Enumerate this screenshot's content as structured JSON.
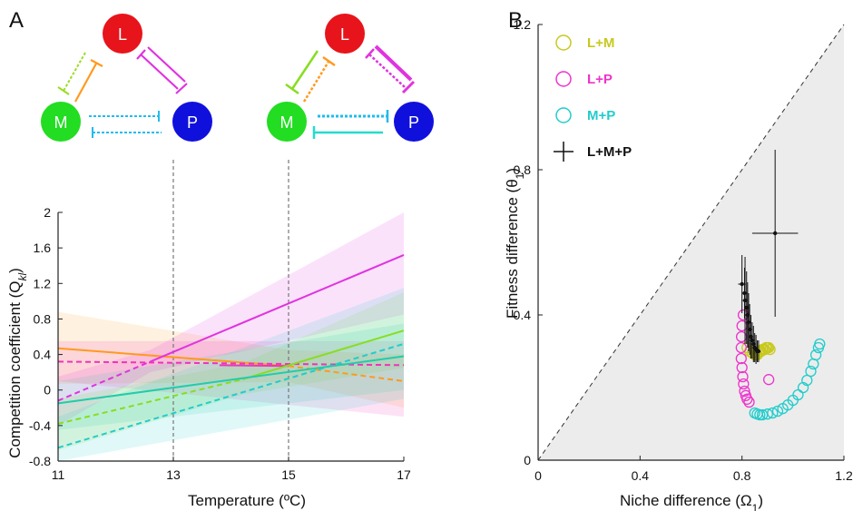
{
  "panels": {
    "a": "A",
    "b": "B"
  },
  "diagram": {
    "nodes": [
      {
        "id": "L",
        "label": "L",
        "color": "#e8141b"
      },
      {
        "id": "M",
        "label": "M",
        "color": "#22dd22"
      },
      {
        "id": "P",
        "label": "P",
        "color": "#1010dd"
      }
    ]
  },
  "chart_data": [
    {
      "type": "line",
      "xlabel": "Temperature (ºC)",
      "ylabel": "Competition coefficient (Q_kl)",
      "ylabel_main": "Competition coefficient (Q",
      "ylabel_sub": "kl",
      "ylabel_end": ")",
      "xlim": [
        11,
        17
      ],
      "ylim": [
        -0.8,
        2
      ],
      "xticks": [
        "11",
        "13",
        "15",
        "17"
      ],
      "yticks": [
        "-0.8",
        "-0.4",
        "0",
        "0.4",
        "0.8",
        "1.2",
        "1.6",
        "2"
      ],
      "vlines": [
        13,
        15
      ],
      "series": [
        {
          "color": "#ff9a1e",
          "dashed": false,
          "x": [
            11,
            15
          ],
          "y": [
            0.47,
            0.27
          ],
          "band": [
            [
              0.88,
              0.07
            ],
            [
              0.45,
              0.09
            ]
          ]
        },
        {
          "color": "#ff9a1e",
          "dashed": true,
          "x": [
            15,
            17
          ],
          "y": [
            0.27,
            0.1
          ],
          "band": [
            [
              0.45,
              0.09
            ],
            [
              0.4,
              -0.2
            ]
          ]
        },
        {
          "color": "#e033e0",
          "dashed": true,
          "x": [
            11,
            12.6
          ],
          "y": [
            -0.12,
            0.32
          ],
          "band": [
            [
              0.15,
              -0.4
            ],
            [
              0.45,
              0.2
            ]
          ]
        },
        {
          "color": "#e033e0",
          "dashed": false,
          "x": [
            12.6,
            17
          ],
          "y": [
            0.32,
            1.52
          ],
          "band": [
            [
              0.45,
              0.2
            ],
            [
              2.0,
              0.85
            ]
          ]
        },
        {
          "color": "#ee33bb",
          "dashed": true,
          "x": [
            11,
            17
          ],
          "y": [
            0.32,
            0.28
          ],
          "band": [
            [
              0.55,
              0.1
            ],
            [
              0.55,
              -0.3
            ]
          ]
        },
        {
          "color": "#ee33bb",
          "dashed": false,
          "x": [
            13.8,
            15
          ],
          "y": [
            0.28,
            0.27
          ],
          "band": null
        },
        {
          "color": "#88dd22",
          "dashed": true,
          "x": [
            11,
            14.2
          ],
          "y": [
            -0.38,
            0.12
          ],
          "band": [
            [
              -0.1,
              -0.68
            ],
            [
              0.3,
              -0.05
            ]
          ]
        },
        {
          "color": "#88dd22",
          "dashed": false,
          "x": [
            14.2,
            17
          ],
          "y": [
            0.12,
            0.67
          ],
          "band": [
            [
              0.3,
              -0.05
            ],
            [
              1.1,
              0.25
            ]
          ]
        },
        {
          "color": "#22cccc",
          "dashed": true,
          "x": [
            11,
            17
          ],
          "y": [
            -0.65,
            0.52
          ],
          "band": [
            [
              -0.3,
              -0.8
            ],
            [
              1.15,
              -0.1
            ]
          ]
        },
        {
          "color": "#22ccaa",
          "dashed": false,
          "x": [
            11,
            17
          ],
          "y": [
            -0.15,
            0.38
          ],
          "band": [
            [
              0.1,
              -0.45
            ],
            [
              0.75,
              0.0
            ]
          ]
        }
      ]
    },
    {
      "type": "scatter",
      "xlabel": "Niche difference (Ω1)",
      "xlabel_main": "Niche difference (Ω",
      "xlabel_sub": "1",
      "xlabel_end": ")",
      "ylabel": "Fitness difference (θ1)",
      "ylabel_main": "Fitness difference (θ",
      "ylabel_sub": "1",
      "ylabel_end": ")",
      "xlim": [
        0,
        1.2
      ],
      "ylim": [
        0,
        1.2
      ],
      "xticks": [
        "0",
        "0.4",
        "0.8",
        "1.2"
      ],
      "yticks": [
        "0",
        "0.4",
        "0.8",
        "1.2"
      ],
      "legend": [
        {
          "label": "L+M",
          "color": "#c8c81e",
          "marker": "circle"
        },
        {
          "label": "L+P",
          "color": "#ee33cc",
          "marker": "circle"
        },
        {
          "label": "M+P",
          "color": "#22cccc",
          "marker": "circle"
        },
        {
          "label": "L+M+P",
          "color": "#111111",
          "marker": "plus"
        }
      ],
      "series": [
        {
          "name": "L+M",
          "color": "#c8c81e",
          "x": [
            0.82,
            0.83,
            0.84,
            0.85,
            0.855,
            0.86,
            0.865,
            0.87,
            0.875,
            0.88,
            0.885,
            0.89,
            0.895,
            0.9,
            0.905,
            0.91
          ],
          "y": [
            0.31,
            0.3,
            0.295,
            0.29,
            0.29,
            0.29,
            0.295,
            0.3,
            0.3,
            0.305,
            0.305,
            0.305,
            0.31,
            0.31,
            0.31,
            0.305
          ]
        },
        {
          "name": "L+P",
          "color": "#ee33cc",
          "x": [
            0.805,
            0.8,
            0.798,
            0.797,
            0.797,
            0.8,
            0.803,
            0.806,
            0.81,
            0.815,
            0.82,
            0.828,
            0.905
          ],
          "y": [
            0.4,
            0.37,
            0.34,
            0.31,
            0.28,
            0.255,
            0.23,
            0.21,
            0.19,
            0.178,
            0.168,
            0.16,
            0.222
          ]
        },
        {
          "name": "M+P",
          "color": "#22cccc",
          "x": [
            0.85,
            0.86,
            0.87,
            0.88,
            0.9,
            0.92,
            0.94,
            0.96,
            0.98,
            1.0,
            1.02,
            1.04,
            1.055,
            1.07,
            1.08,
            1.09,
            1.1,
            1.105
          ],
          "y": [
            0.13,
            0.127,
            0.125,
            0.125,
            0.127,
            0.13,
            0.135,
            0.142,
            0.152,
            0.165,
            0.18,
            0.2,
            0.22,
            0.245,
            0.265,
            0.29,
            0.31,
            0.32
          ]
        },
        {
          "name": "L+M+P",
          "color": "#111111",
          "errorbars": true,
          "points": [
            {
              "x": 0.93,
              "y": 0.625,
              "xerr": 0.09,
              "yerr": 0.23
            },
            {
              "x": 0.8,
              "y": 0.485,
              "xerr": 0.015,
              "yerr": 0.08
            },
            {
              "x": 0.81,
              "y": 0.46,
              "xerr": 0.01,
              "yerr": 0.07
            },
            {
              "x": 0.812,
              "y": 0.44,
              "xerr": 0.01,
              "yerr": 0.12
            },
            {
              "x": 0.818,
              "y": 0.42,
              "xerr": 0.008,
              "yerr": 0.1
            },
            {
              "x": 0.822,
              "y": 0.4,
              "xerr": 0.008,
              "yerr": 0.09
            },
            {
              "x": 0.826,
              "y": 0.38,
              "xerr": 0.01,
              "yerr": 0.08
            },
            {
              "x": 0.83,
              "y": 0.36,
              "xerr": 0.01,
              "yerr": 0.07
            },
            {
              "x": 0.835,
              "y": 0.34,
              "xerr": 0.01,
              "yerr": 0.06
            },
            {
              "x": 0.84,
              "y": 0.33,
              "xerr": 0.01,
              "yerr": 0.05
            },
            {
              "x": 0.845,
              "y": 0.32,
              "xerr": 0.008,
              "yerr": 0.05
            },
            {
              "x": 0.85,
              "y": 0.31,
              "xerr": 0.008,
              "yerr": 0.04
            },
            {
              "x": 0.855,
              "y": 0.305,
              "xerr": 0.008,
              "yerr": 0.04
            },
            {
              "x": 0.86,
              "y": 0.3,
              "xerr": 0.008,
              "yerr": 0.03
            },
            {
              "x": 0.865,
              "y": 0.3,
              "xerr": 0.008,
              "yerr": 0.03
            }
          ]
        }
      ]
    }
  ]
}
